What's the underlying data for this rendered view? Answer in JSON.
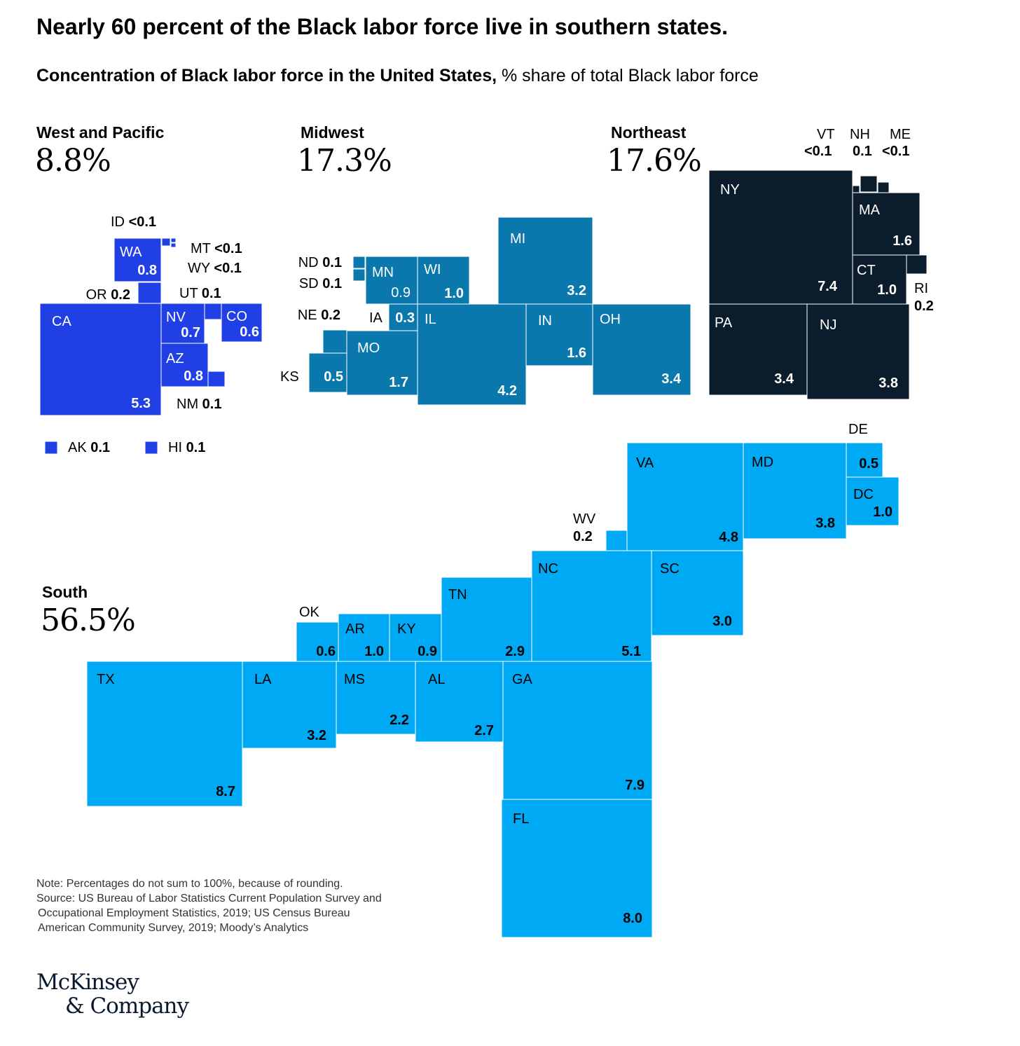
{
  "title": "Nearly 60 percent of the Black labor force live in southern states.",
  "subtitle_bold": "Concentration of Black labor force in the United States,",
  "subtitle_rest": " % share of total Black labor force",
  "regions": {
    "west": {
      "name": "West and Pacific",
      "value": "8.8%",
      "color": "#2040e6"
    },
    "midwest": {
      "name": "Midwest",
      "value": "17.3%",
      "color": "#0a78ad"
    },
    "northeast": {
      "name": "Northeast",
      "value": "17.6%",
      "color": "#0b1d2c"
    },
    "south": {
      "name": "South",
      "value": "56.5%",
      "color": "#00a9f4"
    }
  },
  "chart_data": {
    "type": "table",
    "title": "Nearly 60 percent of the Black labor force live in southern states.",
    "unit": "% share of total Black labor force",
    "states": [
      {
        "state": "CA",
        "value": "5.3",
        "region": "west"
      },
      {
        "state": "WA",
        "value": "0.8",
        "region": "west"
      },
      {
        "state": "OR",
        "value": "0.2",
        "region": "west"
      },
      {
        "state": "ID",
        "value": "<0.1",
        "region": "west"
      },
      {
        "state": "MT",
        "value": "<0.1",
        "region": "west"
      },
      {
        "state": "WY",
        "value": "<0.1",
        "region": "west"
      },
      {
        "state": "UT",
        "value": "0.1",
        "region": "west"
      },
      {
        "state": "NV",
        "value": "0.7",
        "region": "west"
      },
      {
        "state": "CO",
        "value": "0.6",
        "region": "west"
      },
      {
        "state": "AZ",
        "value": "0.8",
        "region": "west"
      },
      {
        "state": "NM",
        "value": "0.1",
        "region": "west"
      },
      {
        "state": "AK",
        "value": "0.1",
        "region": "west"
      },
      {
        "state": "HI",
        "value": "0.1",
        "region": "west"
      },
      {
        "state": "ND",
        "value": "0.1",
        "region": "midwest"
      },
      {
        "state": "SD",
        "value": "0.1",
        "region": "midwest"
      },
      {
        "state": "NE",
        "value": "0.2",
        "region": "midwest"
      },
      {
        "state": "KS",
        "value": "0.5",
        "region": "midwest"
      },
      {
        "state": "MN",
        "value": "0.9",
        "region": "midwest"
      },
      {
        "state": "IA",
        "value": "0.3",
        "region": "midwest"
      },
      {
        "state": "MO",
        "value": "1.7",
        "region": "midwest"
      },
      {
        "state": "WI",
        "value": "1.0",
        "region": "midwest"
      },
      {
        "state": "IL",
        "value": "4.2",
        "region": "midwest"
      },
      {
        "state": "MI",
        "value": "3.2",
        "region": "midwest"
      },
      {
        "state": "IN",
        "value": "1.6",
        "region": "midwest"
      },
      {
        "state": "OH",
        "value": "3.4",
        "region": "midwest"
      },
      {
        "state": "NY",
        "value": "7.4",
        "region": "northeast"
      },
      {
        "state": "PA",
        "value": "3.4",
        "region": "northeast"
      },
      {
        "state": "NJ",
        "value": "3.8",
        "region": "northeast"
      },
      {
        "state": "MA",
        "value": "1.6",
        "region": "northeast"
      },
      {
        "state": "CT",
        "value": "1.0",
        "region": "northeast"
      },
      {
        "state": "RI",
        "value": "0.2",
        "region": "northeast"
      },
      {
        "state": "VT",
        "value": "<0.1",
        "region": "northeast"
      },
      {
        "state": "NH",
        "value": "0.1",
        "region": "northeast"
      },
      {
        "state": "ME",
        "value": "<0.1",
        "region": "northeast"
      },
      {
        "state": "TX",
        "value": "8.7",
        "region": "south"
      },
      {
        "state": "LA",
        "value": "3.2",
        "region": "south"
      },
      {
        "state": "MS",
        "value": "2.2",
        "region": "south"
      },
      {
        "state": "AL",
        "value": "2.7",
        "region": "south"
      },
      {
        "state": "GA",
        "value": "7.9",
        "region": "south"
      },
      {
        "state": "FL",
        "value": "8.0",
        "region": "south"
      },
      {
        "state": "OK",
        "value": "0.6",
        "region": "south"
      },
      {
        "state": "AR",
        "value": "1.0",
        "region": "south"
      },
      {
        "state": "KY",
        "value": "0.9",
        "region": "south"
      },
      {
        "state": "TN",
        "value": "2.9",
        "region": "south"
      },
      {
        "state": "NC",
        "value": "5.1",
        "region": "south"
      },
      {
        "state": "SC",
        "value": "3.0",
        "region": "south"
      },
      {
        "state": "VA",
        "value": "4.8",
        "region": "south"
      },
      {
        "state": "WV",
        "value": "0.2",
        "region": "south"
      },
      {
        "state": "MD",
        "value": "3.8",
        "region": "south"
      },
      {
        "state": "DE",
        "value": "0.5",
        "region": "south"
      },
      {
        "state": "DC",
        "value": "1.0",
        "region": "south"
      }
    ]
  },
  "notes": [
    "Note: Percentages do not sum to 100%, because of rounding.",
    "Source: US Bureau of Labor Statistics Current Population Survey and",
    "Occupational Employment Statistics, 2019; US Census Bureau",
    "American Community Survey, 2019; Moody’s Analytics"
  ],
  "logo": [
    "McKinsey",
    "& Company"
  ]
}
